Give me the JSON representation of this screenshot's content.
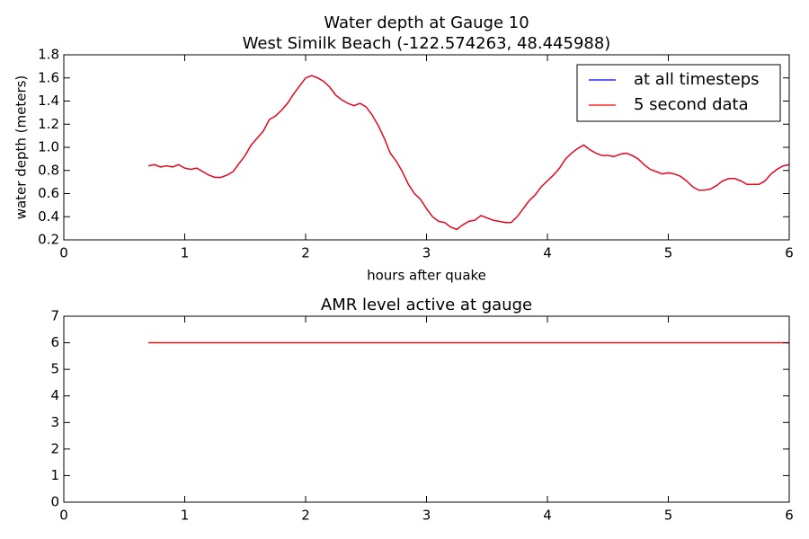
{
  "chart_data": [
    {
      "type": "line",
      "title": "Water depth at Gauge 10",
      "subtitle": "West Similk Beach  (-122.574263, 48.445988)",
      "xlabel": "hours after quake",
      "ylabel": "water depth (meters)",
      "x": [
        0.7,
        0.75,
        0.8,
        0.85,
        0.9,
        0.95,
        1.0,
        1.05,
        1.1,
        1.15,
        1.2,
        1.25,
        1.3,
        1.35,
        1.4,
        1.45,
        1.5,
        1.55,
        1.6,
        1.65,
        1.7,
        1.75,
        1.8,
        1.85,
        1.9,
        1.95,
        2.0,
        2.05,
        2.1,
        2.15,
        2.2,
        2.25,
        2.3,
        2.35,
        2.4,
        2.45,
        2.5,
        2.55,
        2.6,
        2.65,
        2.7,
        2.75,
        2.8,
        2.85,
        2.9,
        2.95,
        3.0,
        3.05,
        3.1,
        3.15,
        3.2,
        3.25,
        3.3,
        3.35,
        3.4,
        3.45,
        3.5,
        3.55,
        3.6,
        3.65,
        3.7,
        3.75,
        3.8,
        3.85,
        3.9,
        3.95,
        4.0,
        4.05,
        4.1,
        4.15,
        4.2,
        4.25,
        4.3,
        4.35,
        4.4,
        4.45,
        4.5,
        4.55,
        4.6,
        4.65,
        4.7,
        4.75,
        4.8,
        4.85,
        4.9,
        4.95,
        5.0,
        5.05,
        5.1,
        5.15,
        5.2,
        5.25,
        5.3,
        5.35,
        5.4,
        5.45,
        5.5,
        5.55,
        5.6,
        5.65,
        5.7,
        5.75,
        5.8,
        5.85,
        5.9,
        5.95,
        6.0
      ],
      "series": [
        {
          "name": "at all timesteps",
          "color": "#0000ff",
          "values": [
            0.84,
            0.85,
            0.83,
            0.84,
            0.83,
            0.85,
            0.82,
            0.81,
            0.82,
            0.79,
            0.76,
            0.74,
            0.74,
            0.76,
            0.79,
            0.86,
            0.93,
            1.02,
            1.08,
            1.14,
            1.24,
            1.27,
            1.32,
            1.38,
            1.46,
            1.53,
            1.6,
            1.62,
            1.6,
            1.57,
            1.52,
            1.45,
            1.41,
            1.38,
            1.36,
            1.38,
            1.35,
            1.28,
            1.19,
            1.08,
            0.95,
            0.88,
            0.79,
            0.68,
            0.6,
            0.55,
            0.47,
            0.4,
            0.36,
            0.35,
            0.31,
            0.29,
            0.33,
            0.36,
            0.37,
            0.41,
            0.39,
            0.37,
            0.36,
            0.35,
            0.35,
            0.4,
            0.47,
            0.54,
            0.59,
            0.66,
            0.71,
            0.76,
            0.82,
            0.9,
            0.95,
            0.99,
            1.02,
            0.98,
            0.95,
            0.93,
            0.93,
            0.92,
            0.94,
            0.95,
            0.93,
            0.9,
            0.85,
            0.81,
            0.79,
            0.77,
            0.78,
            0.77,
            0.75,
            0.71,
            0.66,
            0.63,
            0.63,
            0.64,
            0.67,
            0.71,
            0.73,
            0.73,
            0.71,
            0.68,
            0.68,
            0.68,
            0.71,
            0.77,
            0.81,
            0.84,
            0.85
          ]
        },
        {
          "name": "5 second data",
          "color": "#ff0000",
          "values": [
            0.84,
            0.85,
            0.83,
            0.84,
            0.83,
            0.85,
            0.82,
            0.81,
            0.82,
            0.79,
            0.76,
            0.74,
            0.74,
            0.76,
            0.79,
            0.86,
            0.93,
            1.02,
            1.08,
            1.14,
            1.24,
            1.27,
            1.32,
            1.38,
            1.46,
            1.53,
            1.6,
            1.62,
            1.6,
            1.57,
            1.52,
            1.45,
            1.41,
            1.38,
            1.36,
            1.38,
            1.35,
            1.28,
            1.19,
            1.08,
            0.95,
            0.88,
            0.79,
            0.68,
            0.6,
            0.55,
            0.47,
            0.4,
            0.36,
            0.35,
            0.31,
            0.29,
            0.33,
            0.36,
            0.37,
            0.41,
            0.39,
            0.37,
            0.36,
            0.35,
            0.35,
            0.4,
            0.47,
            0.54,
            0.59,
            0.66,
            0.71,
            0.76,
            0.82,
            0.9,
            0.95,
            0.99,
            1.02,
            0.98,
            0.95,
            0.93,
            0.93,
            0.92,
            0.94,
            0.95,
            0.93,
            0.9,
            0.85,
            0.81,
            0.79,
            0.77,
            0.78,
            0.77,
            0.75,
            0.71,
            0.66,
            0.63,
            0.63,
            0.64,
            0.67,
            0.71,
            0.73,
            0.73,
            0.71,
            0.68,
            0.68,
            0.68,
            0.71,
            0.77,
            0.81,
            0.84,
            0.85
          ]
        }
      ],
      "xlim": [
        0,
        6
      ],
      "xticks": [
        0,
        1,
        2,
        3,
        4,
        5,
        6
      ],
      "ylim": [
        0.2,
        1.8
      ],
      "yticks": [
        0.2,
        0.4,
        0.6,
        0.8,
        {
          "value": 1,
          "label": "1.0"
        },
        1.2,
        1.4,
        1.6,
        1.8
      ],
      "legend": "upper right"
    },
    {
      "type": "line",
      "title": "AMR level active at gauge",
      "x": [
        0.7,
        6
      ],
      "values": [
        6,
        6
      ],
      "color": "#ff0000",
      "xlim": [
        0,
        6
      ],
      "xticks": [
        0,
        1,
        2,
        3,
        4,
        5,
        6
      ],
      "ylim": [
        0,
        7
      ],
      "yticks": [
        0,
        1,
        2,
        3,
        4,
        5,
        6,
        7
      ]
    }
  ]
}
